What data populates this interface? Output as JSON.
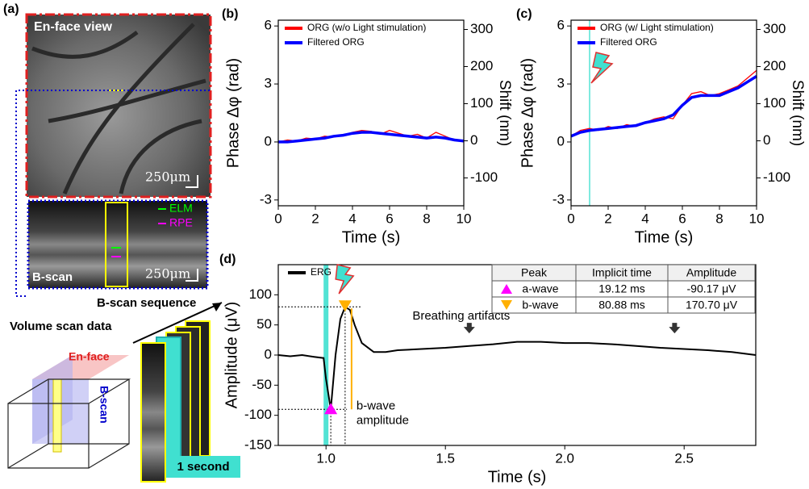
{
  "panel_a": {
    "label": "(a)",
    "enface_title": "En-face view",
    "scale_bar": "250μm",
    "layers": [
      "ELM",
      "RPE"
    ],
    "bscan_title": "B-scan",
    "scale_bar_2": "250μm",
    "volume_title": "Volume scan data",
    "volume_enface": "En-face",
    "volume_bscan": "B-scan",
    "sequence_title": "B-scan sequence",
    "sequence_time": "1 second"
  },
  "chart_data": [
    {
      "type": "line",
      "panel": "(b)",
      "xlabel": "Time (s)",
      "ylabel": "Phase Δφ (rad)",
      "y2label": "Shift (nm)",
      "x": [
        0,
        0.5,
        1,
        1.5,
        2,
        2.5,
        3,
        3.5,
        4,
        4.5,
        5,
        5.5,
        6,
        6.5,
        7,
        7.5,
        8,
        8.5,
        9,
        9.5,
        10
      ],
      "series": [
        {
          "name": "ORG (w/o Light stimulation)",
          "color": "#ff0000",
          "values": [
            0,
            0.1,
            0.05,
            0.2,
            0.15,
            0.3,
            0.25,
            0.35,
            0.5,
            0.6,
            0.55,
            0.4,
            0.6,
            0.45,
            0.3,
            0.4,
            0.2,
            0.5,
            0.3,
            0.1,
            0
          ]
        },
        {
          "name": "Filtered ORG",
          "color": "#0000ff",
          "values": [
            0,
            0,
            0.05,
            0.1,
            0.15,
            0.2,
            0.3,
            0.35,
            0.45,
            0.5,
            0.5,
            0.45,
            0.4,
            0.35,
            0.3,
            0.25,
            0.2,
            0.25,
            0.2,
            0.1,
            0.05
          ]
        }
      ],
      "xlim": [
        0,
        10
      ],
      "xticks": [
        0,
        2,
        4,
        6,
        8,
        10
      ],
      "ylim": [
        -3.3,
        6.3
      ],
      "yticks": [
        -3,
        0,
        3,
        6
      ],
      "y2lim": [
        -175,
        325
      ],
      "y2ticks": [
        -100,
        0,
        100,
        200,
        300
      ]
    },
    {
      "type": "line",
      "panel": "(c)",
      "xlabel": "Time (s)",
      "ylabel": "Phase Δφ (rad)",
      "y2label": "Shift (nm)",
      "x": [
        0,
        0.5,
        1,
        1.5,
        2,
        2.5,
        3,
        3.5,
        4,
        4.5,
        5,
        5.5,
        6,
        6.5,
        7,
        7.5,
        8,
        8.5,
        9,
        9.5,
        10
      ],
      "series": [
        {
          "name": "ORG (w/ Light stimulation)",
          "color": "#ff0000",
          "values": [
            0.3,
            0.6,
            0.7,
            0.6,
            0.8,
            0.7,
            0.9,
            0.8,
            1.0,
            1.2,
            1.3,
            1.2,
            1.9,
            2.5,
            2.6,
            2.4,
            2.5,
            2.7,
            2.9,
            3.3,
            3.7
          ]
        },
        {
          "name": "Filtered ORG",
          "color": "#0000ff",
          "values": [
            0.3,
            0.5,
            0.6,
            0.65,
            0.7,
            0.75,
            0.8,
            0.85,
            1.0,
            1.1,
            1.2,
            1.4,
            1.9,
            2.3,
            2.4,
            2.4,
            2.4,
            2.6,
            2.8,
            3.1,
            3.4
          ]
        }
      ],
      "stimulus_x": 1,
      "xlim": [
        0,
        10
      ],
      "xticks": [
        0,
        2,
        4,
        6,
        8,
        10
      ],
      "ylim": [
        -3.3,
        6.3
      ],
      "yticks": [
        -3,
        0,
        3,
        6
      ],
      "y2lim": [
        -175,
        325
      ],
      "y2ticks": [
        -100,
        0,
        100,
        200,
        300
      ]
    },
    {
      "type": "line",
      "panel": "(d)",
      "xlabel": "Time (s)",
      "ylabel": "Amplitude (μV)",
      "x": [
        0.8,
        0.85,
        0.9,
        0.95,
        0.99,
        1.0,
        1.02,
        1.04,
        1.06,
        1.08,
        1.1,
        1.12,
        1.15,
        1.2,
        1.25,
        1.3,
        1.4,
        1.5,
        1.6,
        1.7,
        1.8,
        1.9,
        2.0,
        2.1,
        2.2,
        2.3,
        2.4,
        2.5,
        2.6,
        2.7,
        2.8
      ],
      "series": [
        {
          "name": "ERG",
          "color": "#000000",
          "values": [
            0,
            -2,
            0,
            -3,
            -5,
            -40,
            -90,
            0,
            60,
            80,
            75,
            50,
            20,
            5,
            5,
            8,
            10,
            12,
            15,
            18,
            22,
            22,
            20,
            20,
            18,
            15,
            12,
            10,
            8,
            5,
            0
          ]
        }
      ],
      "stimulus_x": 1.0,
      "peaks": [
        {
          "x": 1.02,
          "y": -90
        },
        {
          "x": 1.08,
          "y": 80
        }
      ],
      "artifact_x": [
        1.6,
        2.46
      ],
      "annotations": [
        "Breathing artifacts",
        "b-wave",
        "amplitude"
      ],
      "table": {
        "header": [
          "Peak",
          "Implicit time",
          "Amplitude"
        ],
        "rows": [
          [
            "a-wave",
            "19.12 ms",
            "-90.17 μV"
          ],
          [
            "b-wave",
            "80.88 ms",
            "170.70 μV"
          ]
        ]
      },
      "xlim": [
        0.8,
        2.8
      ],
      "xticks": [
        {
          "value": 1,
          "label": "1.0"
        },
        {
          "value": 1.5,
          "label": "1.5"
        },
        {
          "value": 2,
          "label": "2.0"
        },
        {
          "value": 2.5,
          "label": "2.5"
        }
      ],
      "ylim": [
        -150,
        150
      ],
      "yticks": [
        -150,
        -100,
        -50,
        0,
        50,
        100
      ]
    }
  ]
}
